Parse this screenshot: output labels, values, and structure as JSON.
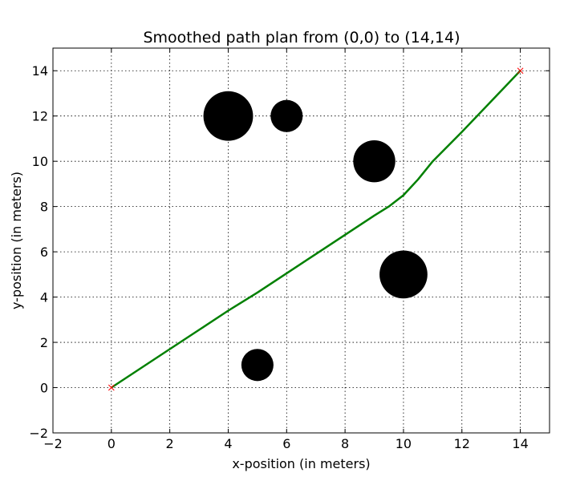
{
  "chart_data": {
    "type": "line",
    "title": "Smoothed path plan from (0,0) to (14,14)",
    "xlabel": "x-position (in meters)",
    "ylabel": "y-position (in meters)",
    "xlim": [
      -2,
      15
    ],
    "ylim": [
      -2,
      15
    ],
    "xticks": [
      -2,
      0,
      2,
      4,
      6,
      8,
      10,
      12,
      14
    ],
    "yticks": [
      -2,
      0,
      2,
      4,
      6,
      8,
      10,
      12,
      14
    ],
    "grid": true,
    "series": [
      {
        "color": "#008000",
        "x": [
          0,
          1,
          2,
          3,
          4,
          5,
          6,
          7,
          8,
          9,
          9.5,
          10,
          10.5,
          11,
          12,
          13,
          14
        ],
        "y": [
          0,
          0.85,
          1.7,
          2.55,
          3.4,
          4.2,
          5.05,
          5.9,
          6.75,
          7.6,
          8.0,
          8.5,
          9.2,
          10.0,
          11.3,
          12.65,
          14.0
        ]
      }
    ],
    "obstacles": [
      {
        "x": 4,
        "y": 12,
        "r": 0.85
      },
      {
        "x": 6,
        "y": 12,
        "r": 0.55
      },
      {
        "x": 9,
        "y": 10,
        "r": 0.72
      },
      {
        "x": 10,
        "y": 5,
        "r": 0.82
      },
      {
        "x": 5,
        "y": 1,
        "r": 0.55
      }
    ],
    "markers": [
      {
        "x": 0,
        "y": 0,
        "symbol": "x",
        "color": "#ff0000"
      },
      {
        "x": 14,
        "y": 14,
        "symbol": "x",
        "color": "#ff0000"
      }
    ],
    "colors": {
      "path": "#008000",
      "obstacle": "#000000",
      "marker": "#ff0000"
    }
  }
}
